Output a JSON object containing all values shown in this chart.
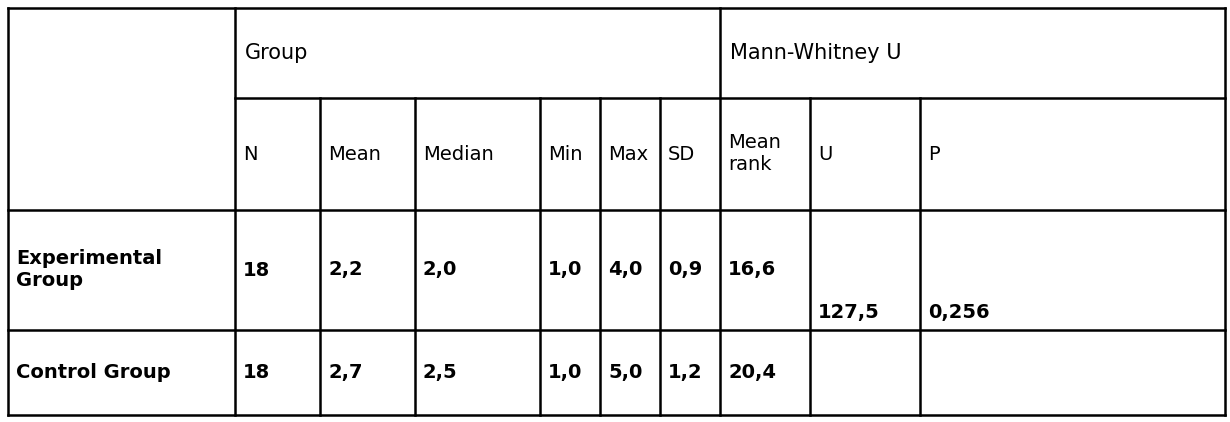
{
  "col_headers_row2": [
    "N",
    "Mean",
    "Median",
    "Min",
    "Max",
    "SD",
    "Mean\nrank",
    "U",
    "P"
  ],
  "row_labels": [
    "Experimental\nGroup",
    "Control Group"
  ],
  "data": [
    [
      "18",
      "2,2",
      "2,0",
      "1,0",
      "4,0",
      "0,9",
      "16,6",
      "127,5",
      "0,256"
    ],
    [
      "18",
      "2,7",
      "2,5",
      "1,0",
      "5,0",
      "1,2",
      "20,4",
      "",
      ""
    ]
  ],
  "u_value": "127,5",
  "p_value": "0,256",
  "bg_color": "#ffffff",
  "text_color": "#000000",
  "line_color": "#000000",
  "font_size": 14
}
